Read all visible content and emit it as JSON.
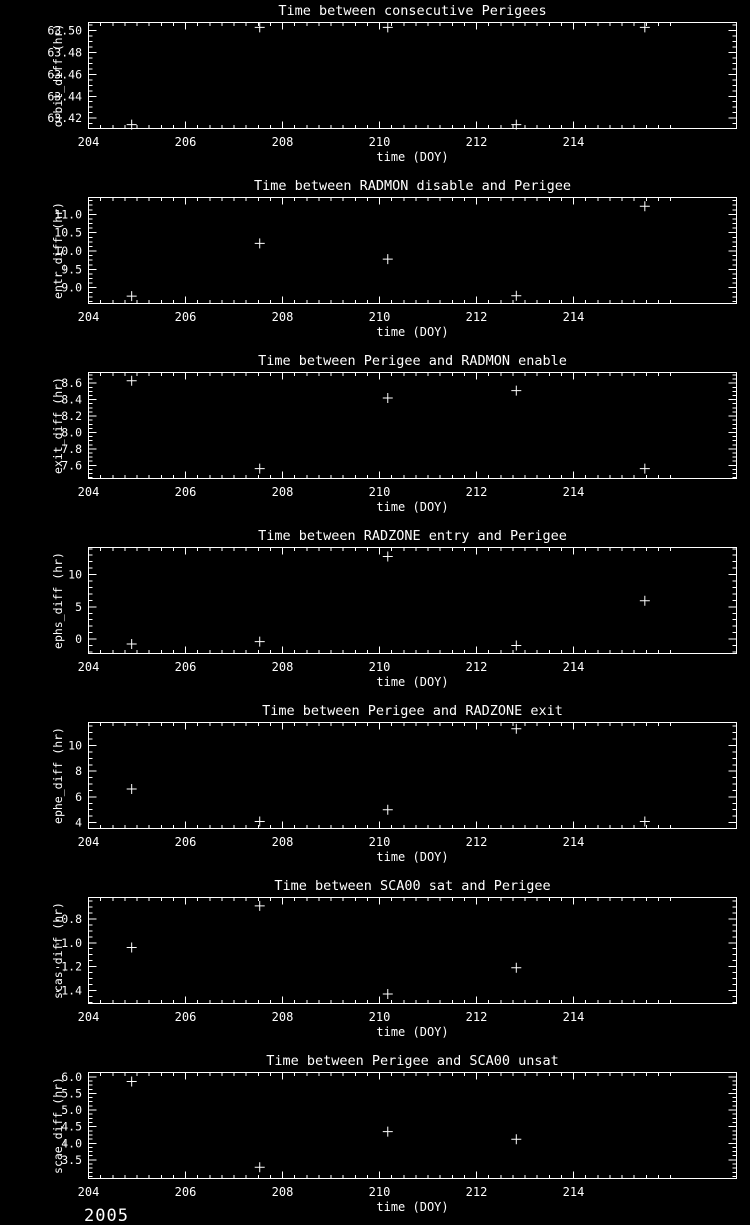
{
  "page": {
    "background": "#000000",
    "foreground": "#ffffff",
    "year_label": "2005"
  },
  "chart_data": [
    {
      "type": "scatter",
      "marker": "plus",
      "title": "Time between consecutive Perigees",
      "xlabel": "time (DOY)",
      "ylabel": "orbit_diff (hr)",
      "xlim": [
        204,
        217.36
      ],
      "ylim": [
        63.4105,
        63.5075
      ],
      "xticks": [
        204,
        206,
        208,
        210,
        212,
        214
      ],
      "xtick_labels": [
        "204",
        "206",
        "208",
        "210",
        "212",
        "214"
      ],
      "x_minor_step": 0.25,
      "x_minor_max": 216,
      "yticks": [
        63.42,
        63.44,
        63.46,
        63.48,
        63.5
      ],
      "ytick_labels": [
        "63.42",
        "63.44",
        "63.46",
        "63.48",
        "63.50"
      ],
      "y_minor_step": 0.005,
      "x": [
        204.89,
        207.53,
        210.17,
        212.82,
        215.47
      ],
      "y": [
        63.414,
        63.503,
        63.503,
        63.414,
        63.503
      ]
    },
    {
      "type": "scatter",
      "marker": "plus",
      "title": "Time between RADMON disable and Perigee",
      "xlabel": "time (DOY)",
      "ylabel": "entr_diff (hr)",
      "xlim": [
        204,
        217.36
      ],
      "ylim": [
        8.57,
        11.46
      ],
      "xticks": [
        204,
        206,
        208,
        210,
        212,
        214
      ],
      "xtick_labels": [
        "204",
        "206",
        "208",
        "210",
        "212",
        "214"
      ],
      "x_minor_step": 0.25,
      "x_minor_max": 216,
      "yticks": [
        9.0,
        9.5,
        10.0,
        10.5,
        11.0
      ],
      "ytick_labels": [
        "9.0",
        "9.5",
        "10.0",
        "10.5",
        "11.0"
      ],
      "y_minor_step": 0.125,
      "x": [
        204.89,
        207.53,
        210.17,
        212.82,
        215.47
      ],
      "y": [
        8.77,
        10.21,
        9.78,
        8.78,
        11.22
      ]
    },
    {
      "type": "scatter",
      "marker": "plus",
      "title": "Time between Perigee and RADMON enable",
      "xlabel": "time (DOY)",
      "ylabel": "exit_diff (hr)",
      "xlim": [
        204,
        217.36
      ],
      "ylim": [
        7.44,
        8.73
      ],
      "xticks": [
        204,
        206,
        208,
        210,
        212,
        214
      ],
      "xtick_labels": [
        "204",
        "206",
        "208",
        "210",
        "212",
        "214"
      ],
      "x_minor_step": 0.25,
      "x_minor_max": 216,
      "yticks": [
        7.6,
        7.8,
        8.0,
        8.2,
        8.4,
        8.6
      ],
      "ytick_labels": [
        "7.6",
        "7.8",
        "8.0",
        "8.2",
        "8.4",
        "8.6"
      ],
      "y_minor_step": 0.05,
      "x": [
        204.89,
        207.53,
        210.17,
        212.82,
        215.47
      ],
      "y": [
        8.63,
        7.56,
        8.42,
        8.51,
        7.56
      ]
    },
    {
      "type": "scatter",
      "marker": "plus",
      "title": "Time between RADZONE entry and Perigee",
      "xlabel": "time (DOY)",
      "ylabel": "ephs_diff (hr)",
      "xlim": [
        204,
        217.36
      ],
      "ylim": [
        -2.24,
        14.2
      ],
      "xticks": [
        204,
        206,
        208,
        210,
        212,
        214
      ],
      "xtick_labels": [
        "204",
        "206",
        "208",
        "210",
        "212",
        "214"
      ],
      "x_minor_step": 0.25,
      "x_minor_max": 216,
      "yticks": [
        0,
        5,
        10
      ],
      "ytick_labels": [
        "0",
        "5",
        "10"
      ],
      "y_minor_step": 1,
      "x": [
        204.89,
        207.53,
        210.17,
        212.82,
        215.47
      ],
      "y": [
        -0.77,
        -0.4,
        12.8,
        -1.0,
        5.95
      ]
    },
    {
      "type": "scatter",
      "marker": "plus",
      "title": "Time between Perigee and RADZONE exit",
      "xlabel": "time (DOY)",
      "ylabel": "ephe_diff (hr)",
      "xlim": [
        204,
        217.36
      ],
      "ylim": [
        3.54,
        11.79
      ],
      "xticks": [
        204,
        206,
        208,
        210,
        212,
        214
      ],
      "xtick_labels": [
        "204",
        "206",
        "208",
        "210",
        "212",
        "214"
      ],
      "x_minor_step": 0.25,
      "x_minor_max": 216,
      "yticks": [
        4,
        6,
        8,
        10
      ],
      "ytick_labels": [
        "4",
        "6",
        "8",
        "10"
      ],
      "y_minor_step": 0.5,
      "x": [
        204.89,
        207.53,
        210.17,
        212.82,
        215.47
      ],
      "y": [
        6.61,
        4.08,
        5.0,
        11.3,
        4.08
      ]
    },
    {
      "type": "scatter",
      "marker": "plus",
      "title": "Time between SCA00 sat and Perigee",
      "xlabel": "time (DOY)",
      "ylabel": "scas_diff (hr)",
      "xlim": [
        204,
        217.36
      ],
      "ylim": [
        -1.51,
        -0.62
      ],
      "xticks": [
        204,
        206,
        208,
        210,
        212,
        214
      ],
      "xtick_labels": [
        "204",
        "206",
        "208",
        "210",
        "212",
        "214"
      ],
      "x_minor_step": 0.25,
      "x_minor_max": 216,
      "yticks": [
        -1.4,
        -1.2,
        -1.0,
        -0.8
      ],
      "ytick_labels": [
        "-1.4",
        "-1.2",
        "-1.0",
        "-0.8"
      ],
      "y_minor_step": 0.05,
      "x": [
        204.89,
        207.53,
        210.17,
        212.82
      ],
      "y": [
        -1.04,
        -0.69,
        -1.43,
        -1.21
      ]
    },
    {
      "type": "scatter",
      "marker": "plus",
      "title": "Time between Perigee and SCA00 unsat",
      "xlabel": "time (DOY)",
      "ylabel": "scae_diff (hr)",
      "xlim": [
        204,
        217.36
      ],
      "ylim": [
        2.94,
        6.13
      ],
      "xticks": [
        204,
        206,
        208,
        210,
        212,
        214
      ],
      "xtick_labels": [
        "204",
        "206",
        "208",
        "210",
        "212",
        "214"
      ],
      "x_minor_step": 0.25,
      "x_minor_max": 216,
      "yticks": [
        3.5,
        4.0,
        4.5,
        5.0,
        5.5,
        6.0
      ],
      "ytick_labels": [
        "3.5",
        "4.0",
        "4.5",
        "5.0",
        "5.5",
        "6.0"
      ],
      "y_minor_step": 0.125,
      "x": [
        204.89,
        207.53,
        210.17,
        212.82
      ],
      "y": [
        5.86,
        3.28,
        4.35,
        4.12
      ]
    }
  ]
}
